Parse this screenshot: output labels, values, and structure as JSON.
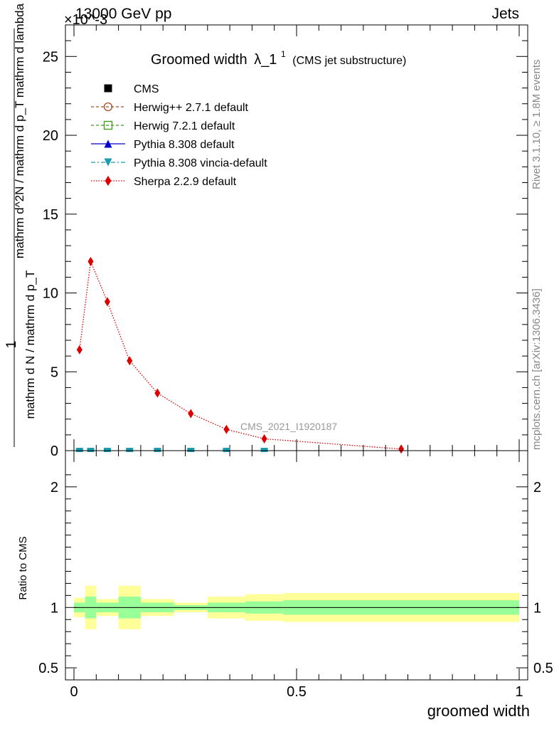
{
  "header": {
    "left": "13000 GeV pp",
    "right": "Jets"
  },
  "side_notes": {
    "rivet": "Rivet 3.1.10, ≥ 1.8M events",
    "mcplots": "mcplots.cern.ch [arXiv:1306.3436]"
  },
  "watermark": "CMS_2021_I1920187",
  "chart_data": [
    {
      "type": "line",
      "title": "Groomed width",
      "title_symbol": "λ_1",
      "title_superscript": "1",
      "subtitle": "(CMS jet substructure)",
      "ylabel_numerator": "1",
      "ylabel_denominator": "mathrm d N / mathrm d p_T",
      "ylabel_rest": "mathrm d^2N / mathrm d p_T mathrm d lambda",
      "y_exponent_label": "×10^-3",
      "xlim": [
        0,
        1
      ],
      "ylim": [
        0,
        27
      ],
      "y_scale_factor": 0.001,
      "yticks": [
        0,
        5,
        10,
        15,
        20,
        25
      ],
      "xticks": [
        0,
        0.5,
        1
      ],
      "legend_placement": "top-left",
      "legend": [
        {
          "name": "CMS",
          "marker": "square-filled",
          "color": "#000000",
          "line": "none"
        },
        {
          "name": "Herwig++ 2.7.1 default",
          "marker": "circle-open",
          "color": "#a0522d",
          "line": "dashed"
        },
        {
          "name": "Herwig 7.2.1 default",
          "marker": "square-open",
          "color": "#3a9a1a",
          "line": "dashed"
        },
        {
          "name": "Pythia 8.308 default",
          "marker": "triangle-up-filled",
          "color": "#0000cc",
          "line": "solid"
        },
        {
          "name": "Pythia 8.308 vincia-default",
          "marker": "triangle-down-filled",
          "color": "#1a9bb0",
          "line": "dashdot"
        },
        {
          "name": "Sherpa 2.2.9 default",
          "marker": "diamond-filled",
          "color": "#dd0000",
          "line": "dotted"
        }
      ],
      "bins": [
        {
          "x0": 0,
          "x1": 0.025,
          "x": 0.0125
        },
        {
          "x0": 0.025,
          "x1": 0.05,
          "x": 0.0375
        },
        {
          "x0": 0.05,
          "x1": 0.1,
          "x": 0.075
        },
        {
          "x0": 0.1,
          "x1": 0.15,
          "x": 0.125
        },
        {
          "x0": 0.15,
          "x1": 0.225,
          "x": 0.1875
        },
        {
          "x0": 0.225,
          "x1": 0.3,
          "x": 0.2625
        },
        {
          "x0": 0.3,
          "x1": 0.385,
          "x": 0.3425
        },
        {
          "x0": 0.385,
          "x1": 0.47,
          "x": 0.4275
        },
        {
          "x0": 0.47,
          "x1": 1.0,
          "x": 0.735
        }
      ],
      "series": [
        {
          "name": "CMS",
          "y": [
            0.0001,
            0.0001,
            0.0001,
            0.0001,
            0.0001,
            0.0001,
            0.0001,
            0.0001,
            0.0001
          ]
        },
        {
          "name": "Sherpa 2.2.9 default",
          "y": [
            6.4,
            12.0,
            9.45,
            5.7,
            3.65,
            2.35,
            1.35,
            0.75,
            0.1
          ]
        }
      ]
    },
    {
      "type": "area",
      "ylabel": "Ratio to CMS",
      "xlabel": "groomed width",
      "xlim": [
        0,
        1
      ],
      "ylim": [
        0.4,
        2.3
      ],
      "yticks": [
        0.5,
        1,
        2
      ],
      "xticks": [
        0,
        0.5,
        1
      ],
      "reference_line": 1,
      "band_colors": {
        "stat": "#99ff99",
        "total": "#ffff99"
      },
      "bands": [
        {
          "x0": 0,
          "x1": 0.025,
          "stat": [
            0.96,
            1.04
          ],
          "total": [
            0.92,
            1.08
          ]
        },
        {
          "x0": 0.025,
          "x1": 0.05,
          "stat": [
            0.91,
            1.09
          ],
          "total": [
            0.82,
            1.18
          ]
        },
        {
          "x0": 0.05,
          "x1": 0.1,
          "stat": [
            0.96,
            1.04
          ],
          "total": [
            0.93,
            1.07
          ]
        },
        {
          "x0": 0.1,
          "x1": 0.15,
          "stat": [
            0.91,
            1.09
          ],
          "total": [
            0.82,
            1.18
          ]
        },
        {
          "x0": 0.15,
          "x1": 0.225,
          "stat": [
            0.96,
            1.04
          ],
          "total": [
            0.93,
            1.07
          ]
        },
        {
          "x0": 0.225,
          "x1": 0.3,
          "stat": [
            0.98,
            1.02
          ],
          "total": [
            0.96,
            1.04
          ]
        },
        {
          "x0": 0.3,
          "x1": 0.385,
          "stat": [
            0.96,
            1.04
          ],
          "total": [
            0.91,
            1.09
          ]
        },
        {
          "x0": 0.385,
          "x1": 0.47,
          "stat": [
            0.95,
            1.05
          ],
          "total": [
            0.89,
            1.11
          ]
        },
        {
          "x0": 0.47,
          "x1": 1.0,
          "stat": [
            0.94,
            1.06
          ],
          "total": [
            0.88,
            1.12
          ]
        }
      ]
    }
  ]
}
